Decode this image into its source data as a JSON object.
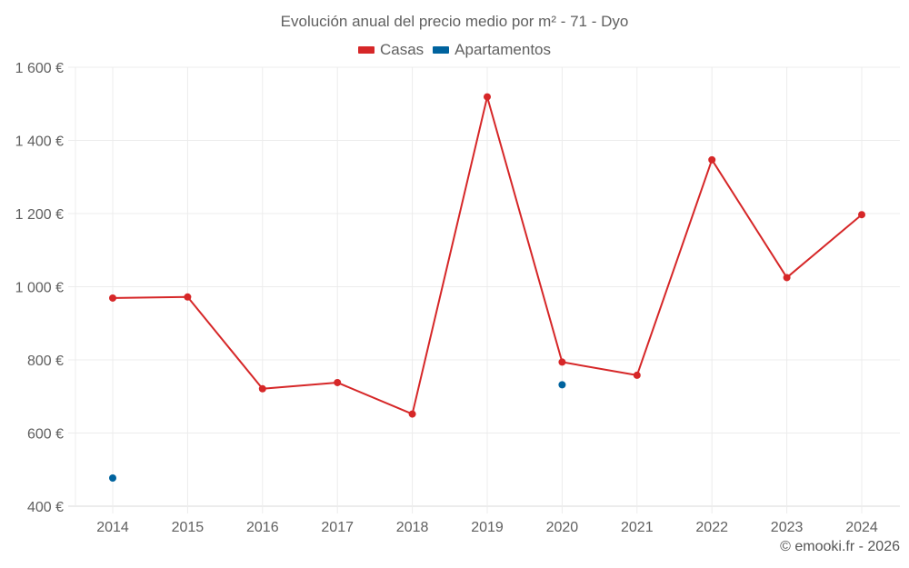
{
  "chart_data": {
    "type": "line",
    "title": "Evolución anual del precio medio por m² - 71 - Dyo",
    "xlabel": "",
    "ylabel": "",
    "categories": [
      "2014",
      "2015",
      "2016",
      "2017",
      "2018",
      "2019",
      "2020",
      "2021",
      "2022",
      "2023",
      "2024"
    ],
    "series": [
      {
        "name": "Casas",
        "color": "#d62728",
        "values": [
          969,
          972,
          721,
          738,
          652,
          1519,
          794,
          758,
          1347,
          1025,
          1197
        ]
      },
      {
        "name": "Apartamentos",
        "color": "#00639e",
        "values": [
          477,
          null,
          null,
          null,
          null,
          null,
          732,
          null,
          null,
          null,
          null
        ]
      }
    ],
    "ylim": [
      400,
      1600
    ],
    "yticks": [
      400,
      600,
      800,
      1000,
      1200,
      1400,
      1600
    ],
    "ytick_labels": [
      "400 €",
      "600 €",
      "800 €",
      "1 000 €",
      "1 200 €",
      "1 400 €",
      "1 600 €"
    ],
    "grid": true,
    "legend_position": "top-center"
  },
  "title": "Evolución anual del precio medio por m² - 71 - Dyo",
  "legend": [
    {
      "label": "Casas",
      "color": "#d62728"
    },
    {
      "label": "Apartamentos",
      "color": "#00639e"
    }
  ],
  "credit": "© emooki.fr - 2026"
}
